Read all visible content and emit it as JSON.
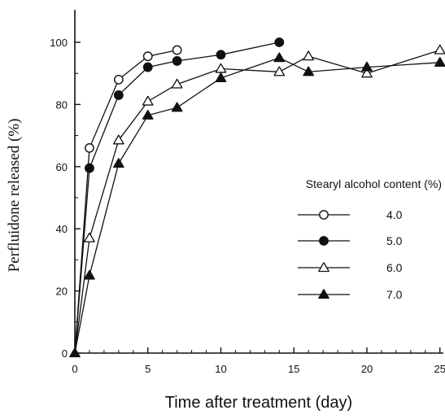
{
  "chart_data": {
    "type": "line",
    "xlabel": "Time after treatment (day)",
    "ylabel": "Perfluidone released (%)",
    "xlim": [
      0,
      26
    ],
    "ylim": [
      0,
      110
    ],
    "xticks": [
      0,
      5,
      10,
      15,
      20,
      25
    ],
    "yticks": [
      0,
      20,
      40,
      60,
      80,
      100
    ],
    "grid": false,
    "legend": {
      "title": "Stearyl alcohol content (%)",
      "placement": "right"
    },
    "series": [
      {
        "name": "4.0",
        "marker": "open-circle",
        "points": [
          [
            0,
            0
          ],
          [
            1,
            66
          ],
          [
            3,
            88
          ],
          [
            5,
            95.5
          ],
          [
            7,
            97.5
          ]
        ]
      },
      {
        "name": "5.0",
        "marker": "filled-circle",
        "points": [
          [
            0,
            0
          ],
          [
            1,
            59.5
          ],
          [
            3,
            83
          ],
          [
            5,
            92
          ],
          [
            7,
            94
          ],
          [
            10,
            96
          ],
          [
            14,
            100
          ]
        ]
      },
      {
        "name": "6.0",
        "marker": "open-triangle",
        "points": [
          [
            0,
            0
          ],
          [
            1,
            37
          ],
          [
            3,
            68.5
          ],
          [
            5,
            81
          ],
          [
            7,
            86.5
          ],
          [
            10,
            91.5
          ],
          [
            14,
            90.5
          ],
          [
            16,
            95.5
          ],
          [
            20,
            90
          ],
          [
            25,
            97.5
          ]
        ]
      },
      {
        "name": "7.0",
        "marker": "filled-triangle",
        "points": [
          [
            0,
            0
          ],
          [
            1,
            25
          ],
          [
            3,
            61
          ],
          [
            5,
            76.5
          ],
          [
            7,
            79
          ],
          [
            10,
            88.5
          ],
          [
            14,
            95
          ],
          [
            16,
            90.5
          ],
          [
            20,
            92
          ],
          [
            25,
            93.5
          ]
        ]
      }
    ]
  }
}
